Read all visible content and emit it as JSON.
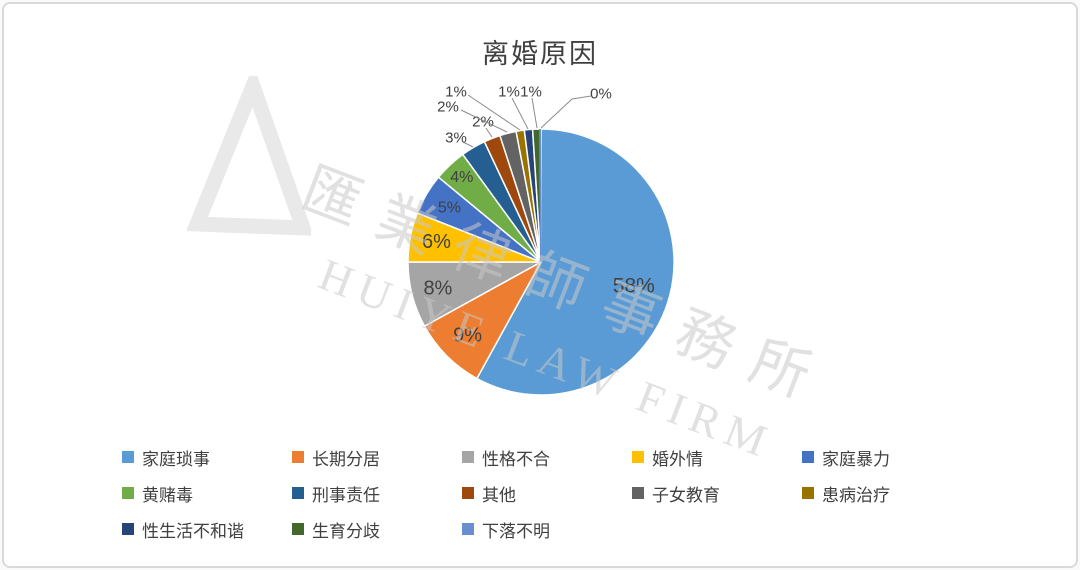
{
  "chart_data": {
    "type": "pie",
    "title": "离婚原因",
    "legend_position": "bottom",
    "label_format": "percent",
    "categories": [
      "家庭琐事",
      "长期分居",
      "性格不合",
      "婚外情",
      "家庭暴力",
      "黄赌毒",
      "刑事责任",
      "其他",
      "子女教育",
      "患病治疗",
      "性生活不和谐",
      "生育分歧",
      "下落不明"
    ],
    "values": [
      58,
      9,
      8,
      6,
      5,
      4,
      3,
      2,
      2,
      1,
      1,
      1,
      0
    ],
    "labels": [
      "58%",
      "9%",
      "8%",
      "6%",
      "5%",
      "4%",
      "3%",
      "2%",
      "2%",
      "1%",
      "1%",
      "1%",
      "0%"
    ],
    "colors": [
      "#5B9BD5",
      "#ED7D31",
      "#A5A5A5",
      "#FFC000",
      "#4472C4",
      "#70AD47",
      "#255E91",
      "#9E480E",
      "#636363",
      "#997300",
      "#264478",
      "#43682B",
      "#698ED0"
    ],
    "label_color": "#404040",
    "leader_line_color": "#8c8c8c"
  },
  "watermark": {
    "line1": "匯業律師事務所",
    "line2": "HUIYE LAW FIRM"
  }
}
